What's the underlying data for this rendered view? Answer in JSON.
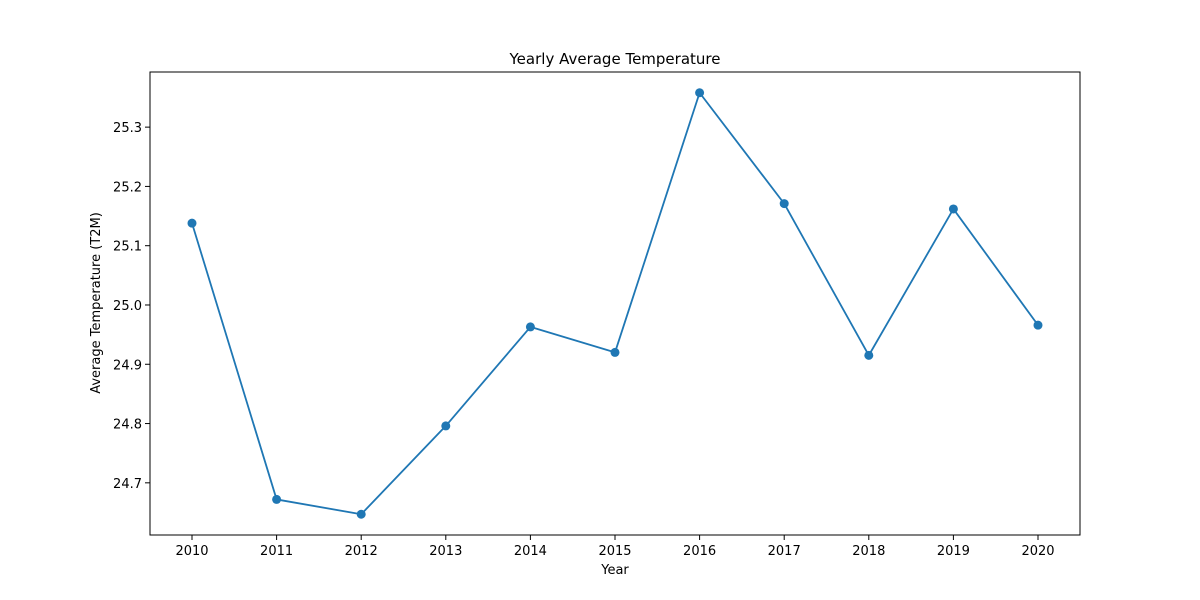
{
  "chart_data": {
    "type": "line",
    "title": "Yearly Average Temperature",
    "xlabel": "Year",
    "ylabel": "Average Temperature (T2M)",
    "x": [
      "2010",
      "2011",
      "2012",
      "2013",
      "2014",
      "2015",
      "2016",
      "2017",
      "2018",
      "2019",
      "2020"
    ],
    "series": [
      {
        "values": [
          25.138,
          24.672,
          24.647,
          24.796,
          24.963,
          24.92,
          25.358,
          25.171,
          24.915,
          25.162,
          24.966
        ],
        "color": "#1f77b4",
        "marker": "circle"
      }
    ],
    "yticks": [
      "24.7",
      "24.8",
      "24.9",
      "25.0",
      "25.1",
      "25.2",
      "25.3"
    ],
    "ylim": [
      24.612,
      25.393
    ],
    "grid": false,
    "legend": "none"
  }
}
